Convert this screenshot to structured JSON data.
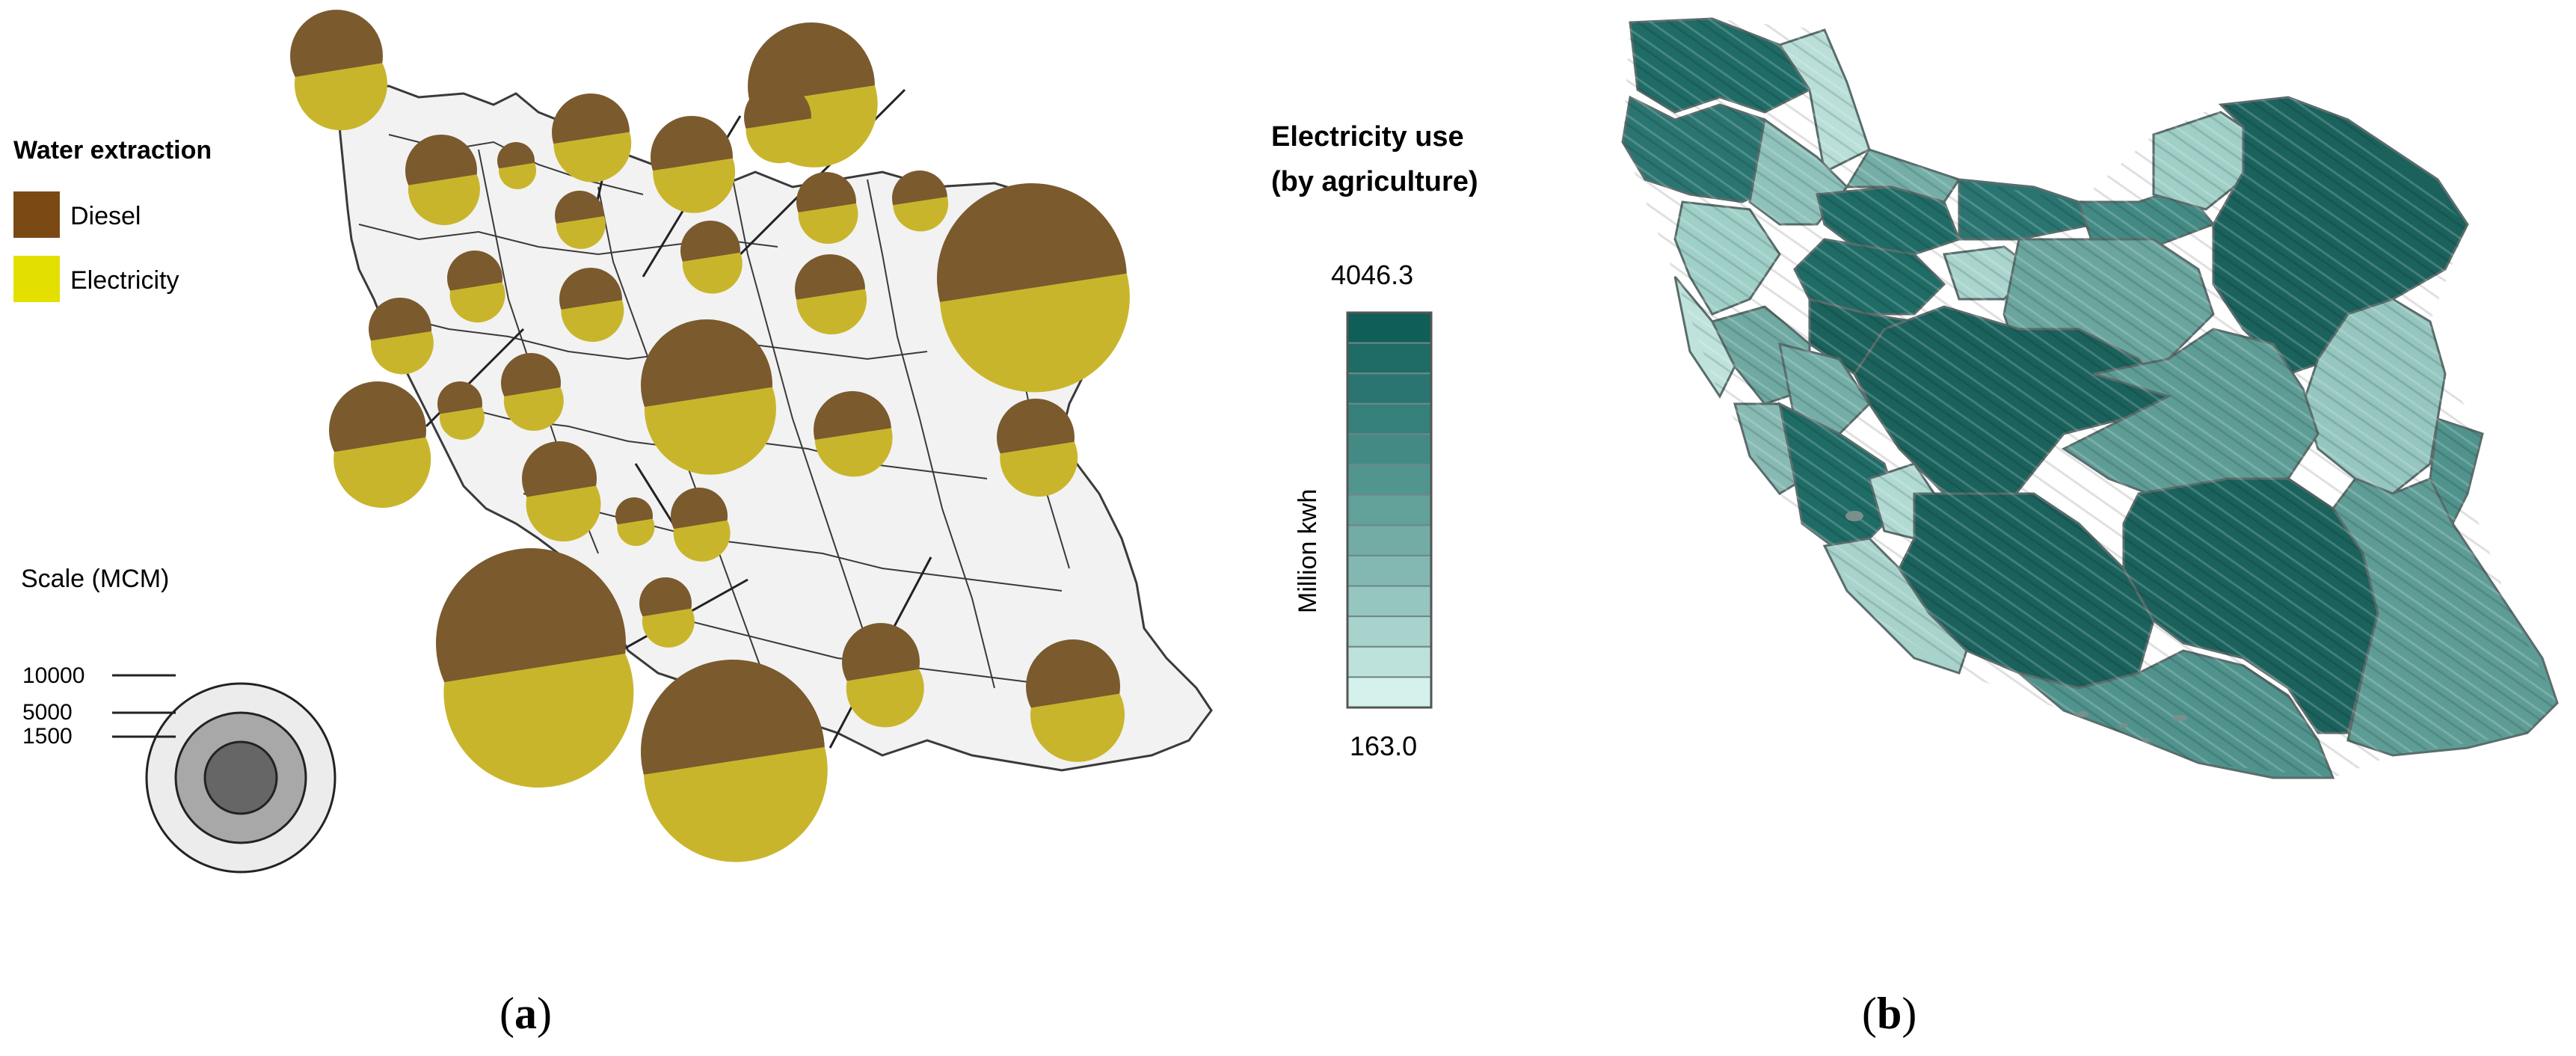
{
  "panel_a": {
    "caption_open": "(",
    "caption_letter": "a",
    "caption_close": ")",
    "legend": {
      "title": "Water extraction",
      "items": [
        {
          "label": "Diesel",
          "color": "#7b4a14"
        },
        {
          "label": "Electricity",
          "color": "#e3e000"
        }
      ]
    },
    "scale": {
      "title": "Scale (MCM)",
      "ticks": [
        "10000",
        "5000",
        "1500"
      ]
    },
    "pie_colors": {
      "diesel": "#7b5a2e",
      "electricity": "#c9b52c"
    },
    "map_fill": "#f2f2f2",
    "map_stroke": "#3a3a3a"
  },
  "panel_b": {
    "caption_open": "(",
    "caption_letter": "b",
    "caption_close": ")",
    "legend": {
      "title_line1": "Electricity use",
      "title_line2": "(by agriculture)",
      "max_label": "4046.3",
      "min_label": "163.0",
      "axis_label": "Million kwh",
      "colors": [
        "#0f5e58",
        "#1f6b66",
        "#2a7571",
        "#36807b",
        "#438a85",
        "#52958f",
        "#62a09a",
        "#72aca5",
        "#82b8b1",
        "#95c6bf",
        "#a7d3cc",
        "#bde2db",
        "#d4f1ec"
      ]
    }
  }
}
